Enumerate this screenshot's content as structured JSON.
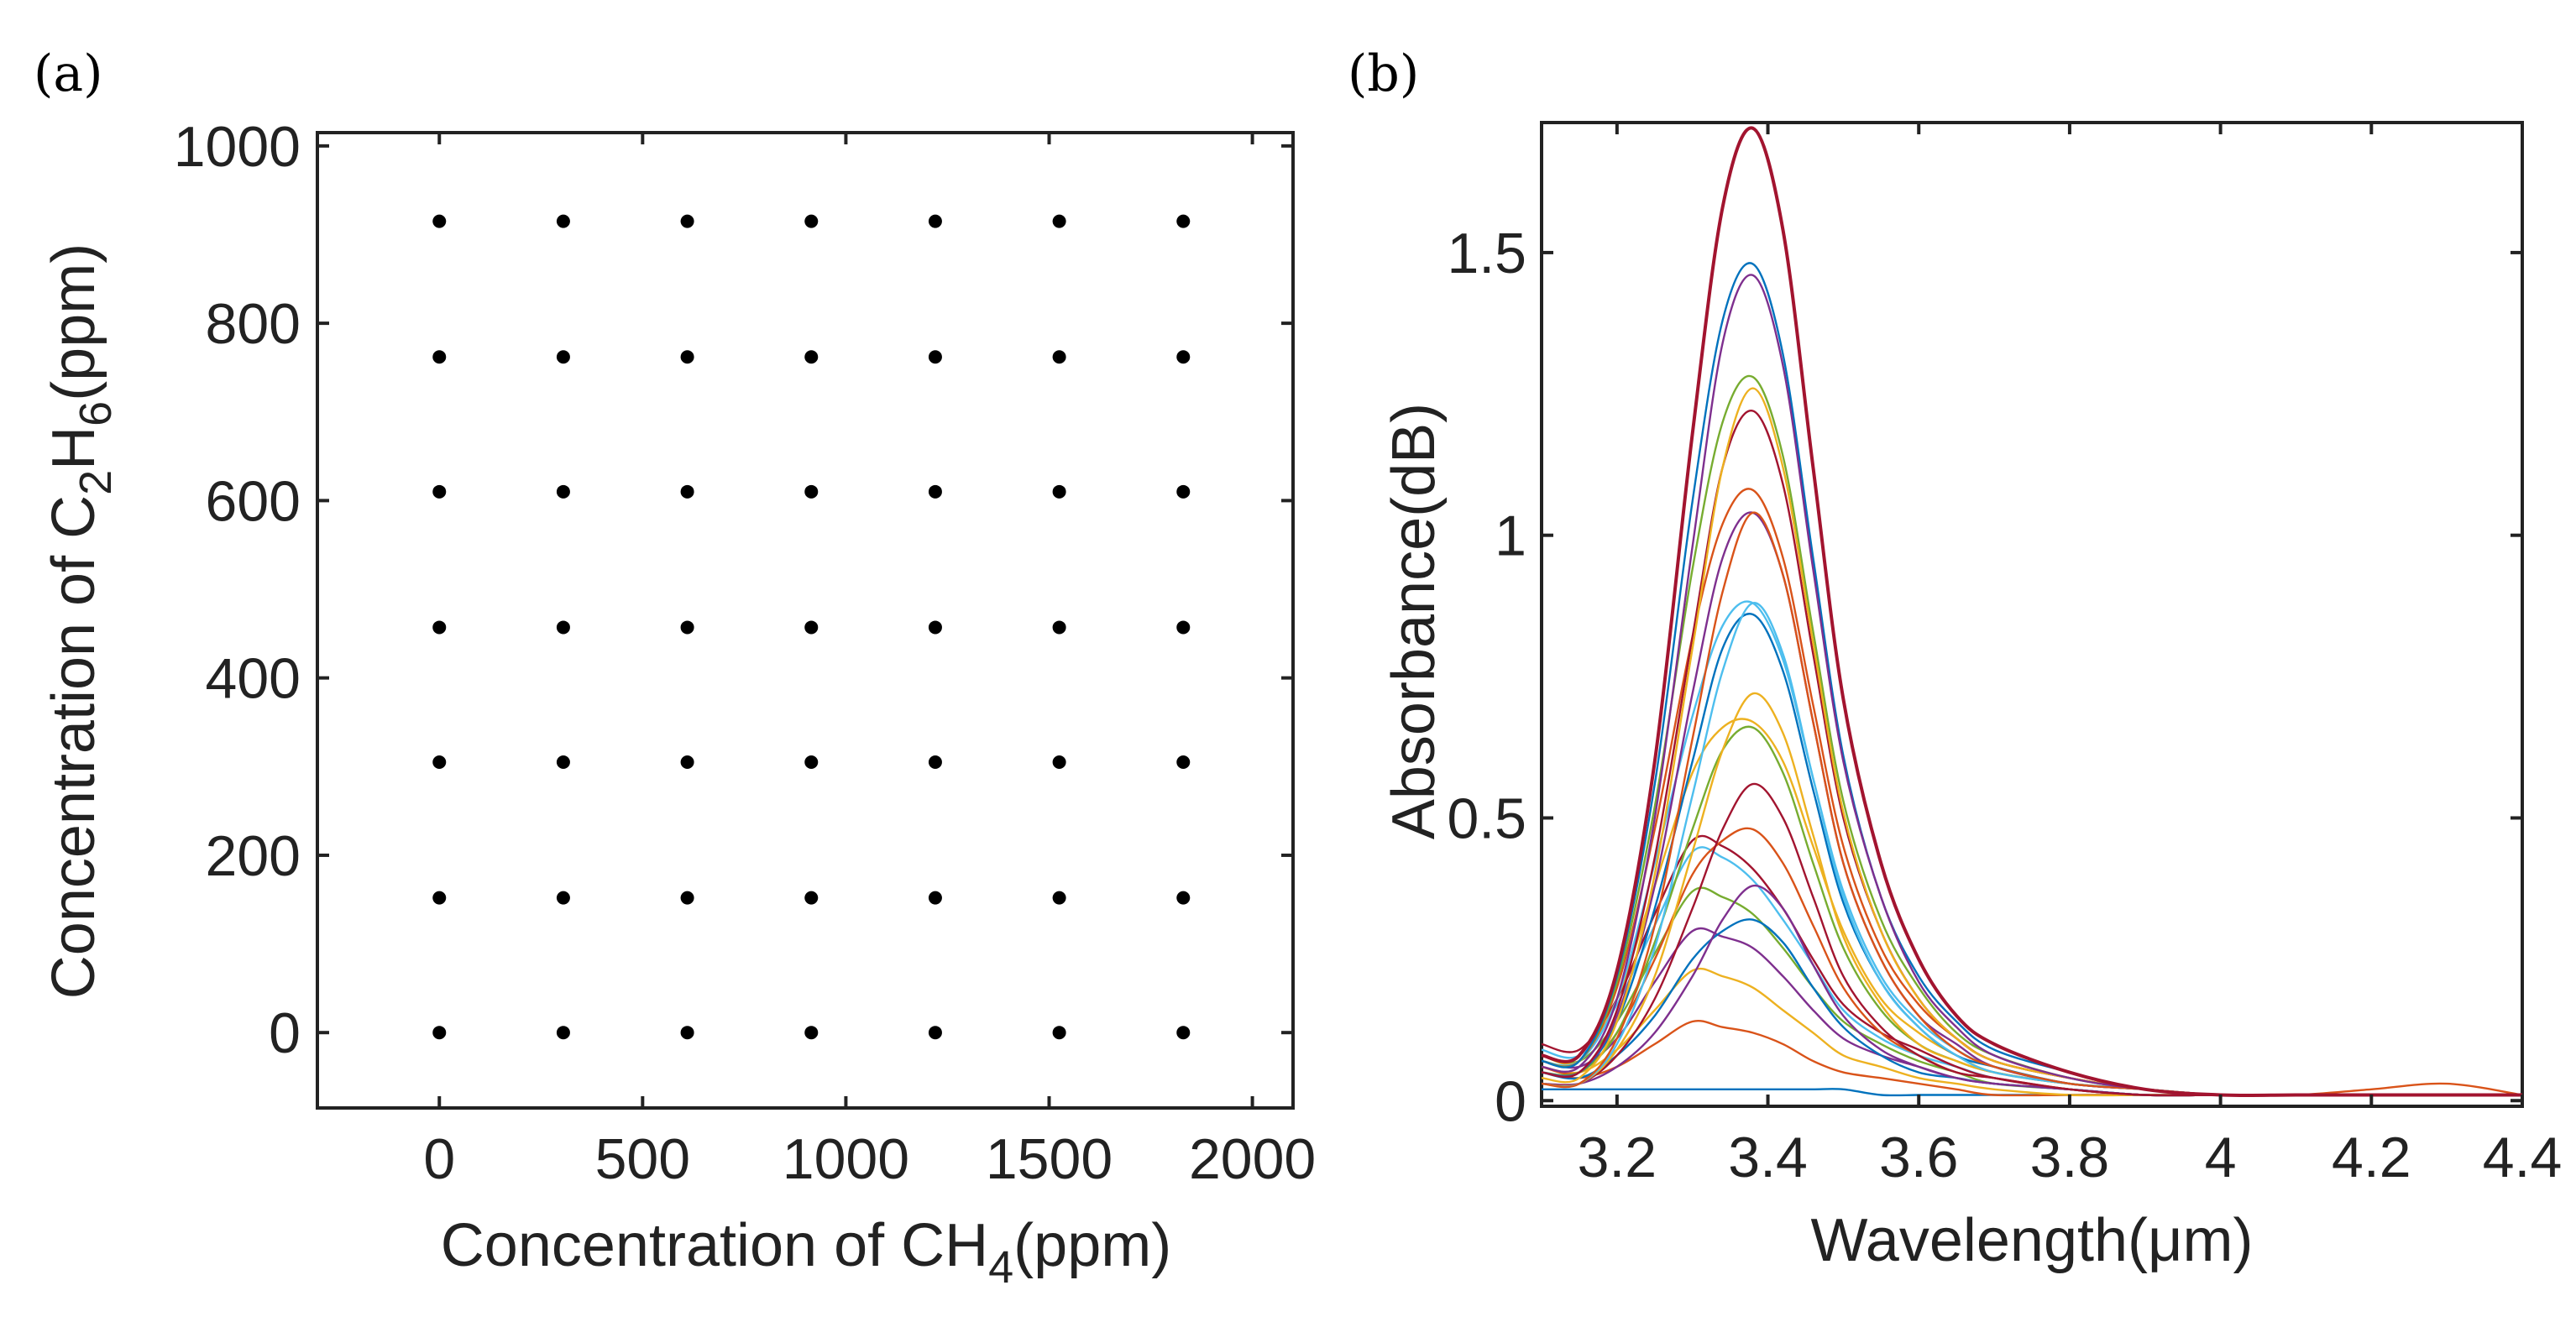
{
  "chart_data": [
    {
      "panel_label": "(a)",
      "type": "scatter",
      "title": "",
      "xlabel": {
        "main": "Concentration of CH",
        "sub": "4",
        "tail": "(ppm)"
      },
      "ylabel": {
        "main": "Concentration of C",
        "sub1": "2",
        "mid": "H",
        "sub2": "6",
        "tail": "(ppm)"
      },
      "xlim": [
        -300,
        2100
      ],
      "ylim": [
        -85,
        1015
      ],
      "xticks": [
        0,
        500,
        1000,
        1500,
        2000
      ],
      "xtick_labels": [
        "0",
        "500",
        "1000",
        "1500",
        "2000"
      ],
      "yticks": [
        0,
        200,
        400,
        600,
        800,
        1000
      ],
      "ytick_labels": [
        "0",
        "200",
        "400",
        "600",
        "800",
        "1000"
      ],
      "x_levels": [
        0,
        305,
        610,
        915,
        1220,
        1525,
        1830
      ],
      "y_levels": [
        0,
        152,
        305,
        457,
        610,
        762,
        915
      ],
      "marker_color": "#000000"
    },
    {
      "panel_label": "(b)",
      "type": "line",
      "title": "",
      "xlabel": "Wavelength(μm)",
      "ylabel": "Absorbance(dB)",
      "xlim": [
        3.1,
        4.4
      ],
      "ylim": [
        -0.01,
        1.73
      ],
      "xticks": [
        3.2,
        3.4,
        3.6,
        3.8,
        4.0,
        4.2,
        4.4
      ],
      "xtick_labels": [
        "3.2",
        "3.4",
        "3.6",
        "3.8",
        "4",
        "4.2",
        "4.4"
      ],
      "yticks": [
        0,
        0.5,
        1.0,
        1.5
      ],
      "ytick_labels": [
        "0",
        "0.5",
        "1",
        "1.5"
      ],
      "palette": [
        "#0072bd",
        "#d95319",
        "#edb120",
        "#7e2f8e",
        "#77ac30",
        "#4dbeee",
        "#a2142f"
      ],
      "x_samples": [
        3.1,
        3.15,
        3.2,
        3.25,
        3.3,
        3.34,
        3.38,
        3.42,
        3.46,
        3.5,
        3.55,
        3.6,
        3.65,
        3.7,
        3.8,
        3.9,
        4.0,
        4.1,
        4.2,
        4.3,
        4.4
      ],
      "series": [
        {
          "name": "c0-0",
          "values": [
            0.02,
            0.02,
            0.02,
            0.02,
            0.02,
            0.02,
            0.02,
            0.02,
            0.02,
            0.02,
            0.01,
            0.01,
            0.01,
            0.01,
            0.01,
            0.01,
            0.01,
            0.01,
            0.01,
            0.01,
            0.01
          ]
        },
        {
          "name": "c0-1",
          "values": [
            0.05,
            0.04,
            0.06,
            0.1,
            0.14,
            0.13,
            0.12,
            0.1,
            0.07,
            0.05,
            0.04,
            0.03,
            0.02,
            0.01,
            0.01,
            0.01,
            0.01,
            0.01,
            0.02,
            0.03,
            0.01
          ]
        },
        {
          "name": "c0-2",
          "values": [
            0.06,
            0.05,
            0.09,
            0.16,
            0.23,
            0.22,
            0.2,
            0.16,
            0.12,
            0.08,
            0.06,
            0.04,
            0.03,
            0.02,
            0.01,
            0.01,
            0.01,
            0.01,
            0.01,
            0.01,
            0.01
          ]
        },
        {
          "name": "c0-3",
          "values": [
            0.07,
            0.06,
            0.11,
            0.21,
            0.3,
            0.29,
            0.27,
            0.22,
            0.16,
            0.11,
            0.08,
            0.06,
            0.04,
            0.03,
            0.02,
            0.01,
            0.01,
            0.01,
            0.01,
            0.01,
            0.01
          ]
        },
        {
          "name": "c0-4",
          "values": [
            0.08,
            0.07,
            0.14,
            0.26,
            0.37,
            0.36,
            0.33,
            0.27,
            0.2,
            0.14,
            0.1,
            0.07,
            0.05,
            0.03,
            0.02,
            0.01,
            0.01,
            0.01,
            0.01,
            0.01,
            0.01
          ]
        },
        {
          "name": "c0-5",
          "values": [
            0.09,
            0.08,
            0.17,
            0.31,
            0.44,
            0.43,
            0.39,
            0.32,
            0.24,
            0.16,
            0.11,
            0.08,
            0.06,
            0.04,
            0.02,
            0.01,
            0.01,
            0.01,
            0.01,
            0.01,
            0.01
          ]
        },
        {
          "name": "c0-6",
          "values": [
            0.1,
            0.09,
            0.18,
            0.33,
            0.46,
            0.45,
            0.41,
            0.34,
            0.25,
            0.17,
            0.12,
            0.09,
            0.06,
            0.04,
            0.02,
            0.01,
            0.01,
            0.01,
            0.01,
            0.01,
            0.01
          ]
        },
        {
          "name": "c1-1",
          "values": [
            0.05,
            0.04,
            0.08,
            0.15,
            0.25,
            0.3,
            0.32,
            0.28,
            0.2,
            0.13,
            0.08,
            0.05,
            0.04,
            0.03,
            0.02,
            0.01,
            0.01,
            0.01,
            0.01,
            0.01,
            0.01
          ]
        },
        {
          "name": "c1-3",
          "values": [
            0.06,
            0.05,
            0.12,
            0.25,
            0.4,
            0.46,
            0.48,
            0.42,
            0.31,
            0.2,
            0.12,
            0.08,
            0.05,
            0.04,
            0.02,
            0.01,
            0.01,
            0.01,
            0.01,
            0.01,
            0.01
          ]
        },
        {
          "name": "c1-6",
          "values": [
            0.08,
            0.07,
            0.18,
            0.38,
            0.58,
            0.66,
            0.67,
            0.6,
            0.45,
            0.3,
            0.18,
            0.12,
            0.08,
            0.05,
            0.03,
            0.02,
            0.01,
            0.01,
            0.01,
            0.01,
            0.01
          ]
        },
        {
          "name": "c2-0",
          "values": [
            0.03,
            0.03,
            0.06,
            0.12,
            0.22,
            0.32,
            0.38,
            0.34,
            0.24,
            0.15,
            0.09,
            0.06,
            0.04,
            0.03,
            0.02,
            0.01,
            0.01,
            0.01,
            0.01,
            0.01,
            0.01
          ]
        },
        {
          "name": "c2-3",
          "values": [
            0.05,
            0.05,
            0.12,
            0.28,
            0.48,
            0.62,
            0.66,
            0.58,
            0.42,
            0.27,
            0.16,
            0.1,
            0.07,
            0.05,
            0.03,
            0.02,
            0.01,
            0.01,
            0.01,
            0.01,
            0.01
          ]
        },
        {
          "name": "c2-6",
          "values": [
            0.07,
            0.07,
            0.18,
            0.42,
            0.68,
            0.84,
            0.88,
            0.78,
            0.57,
            0.37,
            0.22,
            0.14,
            0.09,
            0.06,
            0.03,
            0.02,
            0.01,
            0.01,
            0.01,
            0.01,
            0.01
          ]
        },
        {
          "name": "c3-0",
          "values": [
            0.03,
            0.03,
            0.08,
            0.18,
            0.34,
            0.48,
            0.56,
            0.5,
            0.36,
            0.22,
            0.13,
            0.08,
            0.05,
            0.04,
            0.02,
            0.01,
            0.01,
            0.01,
            0.01,
            0.01,
            0.01
          ]
        },
        {
          "name": "c3-3",
          "values": [
            0.05,
            0.05,
            0.14,
            0.34,
            0.6,
            0.8,
            0.86,
            0.76,
            0.55,
            0.35,
            0.21,
            0.13,
            0.08,
            0.06,
            0.03,
            0.02,
            0.01,
            0.01,
            0.01,
            0.01,
            0.01
          ]
        },
        {
          "name": "c3-6",
          "values": [
            0.07,
            0.07,
            0.2,
            0.48,
            0.82,
            1.02,
            1.08,
            0.96,
            0.7,
            0.45,
            0.27,
            0.17,
            0.11,
            0.07,
            0.04,
            0.02,
            0.01,
            0.01,
            0.01,
            0.01,
            0.01
          ]
        },
        {
          "name": "c4-0",
          "values": [
            0.03,
            0.03,
            0.09,
            0.22,
            0.44,
            0.62,
            0.72,
            0.65,
            0.47,
            0.29,
            0.17,
            0.1,
            0.07,
            0.05,
            0.03,
            0.02,
            0.01,
            0.01,
            0.01,
            0.01,
            0.01
          ]
        },
        {
          "name": "c4-3",
          "values": [
            0.05,
            0.05,
            0.15,
            0.38,
            0.72,
            0.96,
            1.04,
            0.93,
            0.67,
            0.42,
            0.25,
            0.15,
            0.1,
            0.06,
            0.03,
            0.02,
            0.01,
            0.01,
            0.01,
            0.01,
            0.01
          ]
        },
        {
          "name": "c4-6",
          "values": [
            0.07,
            0.07,
            0.21,
            0.52,
            0.94,
            1.2,
            1.28,
            1.14,
            0.83,
            0.53,
            0.32,
            0.2,
            0.12,
            0.08,
            0.04,
            0.02,
            0.01,
            0.01,
            0.01,
            0.01,
            0.01
          ]
        },
        {
          "name": "c5-0",
          "values": [
            0.03,
            0.03,
            0.1,
            0.27,
            0.54,
            0.76,
            0.88,
            0.79,
            0.57,
            0.36,
            0.21,
            0.13,
            0.08,
            0.05,
            0.03,
            0.02,
            0.01,
            0.01,
            0.01,
            0.01,
            0.01
          ]
        },
        {
          "name": "c5-3",
          "values": [
            0.05,
            0.05,
            0.16,
            0.43,
            0.82,
            1.12,
            1.22,
            1.09,
            0.79,
            0.5,
            0.3,
            0.18,
            0.11,
            0.07,
            0.04,
            0.02,
            0.01,
            0.01,
            0.01,
            0.01,
            0.01
          ]
        },
        {
          "name": "c5-6",
          "values": [
            0.07,
            0.07,
            0.22,
            0.56,
            1.06,
            1.38,
            1.48,
            1.32,
            0.96,
            0.61,
            0.36,
            0.22,
            0.14,
            0.09,
            0.05,
            0.02,
            0.01,
            0.01,
            0.01,
            0.01,
            0.01
          ]
        },
        {
          "name": "c6-0",
          "values": [
            0.03,
            0.03,
            0.11,
            0.31,
            0.64,
            0.9,
            1.04,
            0.93,
            0.67,
            0.42,
            0.25,
            0.15,
            0.09,
            0.06,
            0.03,
            0.02,
            0.01,
            0.01,
            0.01,
            0.01,
            0.01
          ]
        },
        {
          "name": "c6-2",
          "values": [
            0.04,
            0.04,
            0.14,
            0.4,
            0.8,
            1.12,
            1.26,
            1.12,
            0.81,
            0.51,
            0.3,
            0.18,
            0.11,
            0.07,
            0.04,
            0.02,
            0.01,
            0.01,
            0.01,
            0.01,
            0.01
          ]
        },
        {
          "name": "c6-4",
          "values": [
            0.06,
            0.06,
            0.18,
            0.5,
            0.98,
            1.34,
            1.46,
            1.3,
            0.94,
            0.6,
            0.36,
            0.21,
            0.13,
            0.08,
            0.04,
            0.02,
            0.01,
            0.01,
            0.01,
            0.01,
            0.01
          ]
        },
        {
          "name": "c6-6",
          "values": [
            0.08,
            0.08,
            0.23,
            0.6,
            1.18,
            1.58,
            1.72,
            1.54,
            1.12,
            0.71,
            0.42,
            0.25,
            0.15,
            0.1,
            0.05,
            0.02,
            0.01,
            0.01,
            0.01,
            0.01,
            0.01
          ]
        }
      ]
    }
  ]
}
